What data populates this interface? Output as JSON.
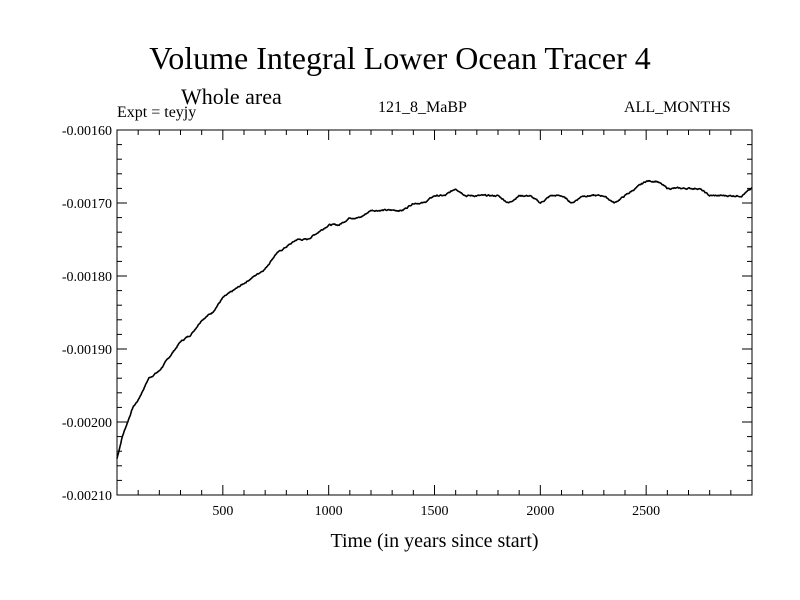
{
  "header": {
    "title": "Volume Integral Lower Ocean Tracer 4",
    "subtitle": "Whole area",
    "expt": "Expt = teyjy",
    "run": "121_8_MaBP",
    "months": "ALL_MONTHS"
  },
  "chart_data": {
    "type": "line",
    "title": "Volume Integral Lower Ocean Tracer 4",
    "subtitle": "Whole area",
    "xlabel": "Time (in years since start)",
    "ylabel": "",
    "xlim": [
      0,
      3000
    ],
    "ylim": [
      -0.0021,
      -0.0016
    ],
    "x_ticks": [
      500,
      1000,
      1500,
      2000,
      2500
    ],
    "x_tick_labels": [
      "500",
      "1000",
      "1500",
      "2000",
      "2500"
    ],
    "y_ticks": [
      -0.0016,
      -0.0017,
      -0.0018,
      -0.0019,
      -0.002,
      -0.0021
    ],
    "y_tick_labels": [
      "-0.00160",
      "-0.00170",
      "-0.00180",
      "-0.00190",
      "-0.00200",
      "-0.00210"
    ],
    "grid": false,
    "series": [
      {
        "name": "Lower Ocean Tracer 4",
        "color": "#000000",
        "x": [
          0,
          25,
          50,
          75,
          100,
          150,
          200,
          250,
          300,
          350,
          400,
          450,
          500,
          550,
          600,
          650,
          700,
          750,
          800,
          850,
          900,
          950,
          1000,
          1050,
          1100,
          1150,
          1200,
          1250,
          1300,
          1350,
          1400,
          1450,
          1500,
          1550,
          1600,
          1650,
          1700,
          1750,
          1800,
          1850,
          1900,
          1950,
          2000,
          2050,
          2100,
          2150,
          2200,
          2250,
          2300,
          2350,
          2400,
          2450,
          2500,
          2550,
          2600,
          2650,
          2700,
          2750,
          2800,
          2850,
          2900,
          2950,
          3000
        ],
        "values": [
          -0.00205,
          -0.00202,
          -0.002,
          -0.00198,
          -0.00197,
          -0.00194,
          -0.00193,
          -0.00191,
          -0.00189,
          -0.00188,
          -0.00186,
          -0.00185,
          -0.00183,
          -0.00182,
          -0.00181,
          -0.0018,
          -0.00179,
          -0.00177,
          -0.00176,
          -0.00175,
          -0.00175,
          -0.00174,
          -0.00173,
          -0.00173,
          -0.00172,
          -0.00172,
          -0.00171,
          -0.00171,
          -0.00171,
          -0.00171,
          -0.0017,
          -0.0017,
          -0.00169,
          -0.00169,
          -0.00168,
          -0.00169,
          -0.00169,
          -0.00169,
          -0.00169,
          -0.0017,
          -0.00169,
          -0.00169,
          -0.0017,
          -0.00169,
          -0.00169,
          -0.0017,
          -0.00169,
          -0.00169,
          -0.00169,
          -0.0017,
          -0.00169,
          -0.00168,
          -0.00167,
          -0.00167,
          -0.00168,
          -0.00168,
          -0.00168,
          -0.00168,
          -0.00169,
          -0.00169,
          -0.00169,
          -0.00169,
          -0.00168
        ]
      }
    ]
  }
}
